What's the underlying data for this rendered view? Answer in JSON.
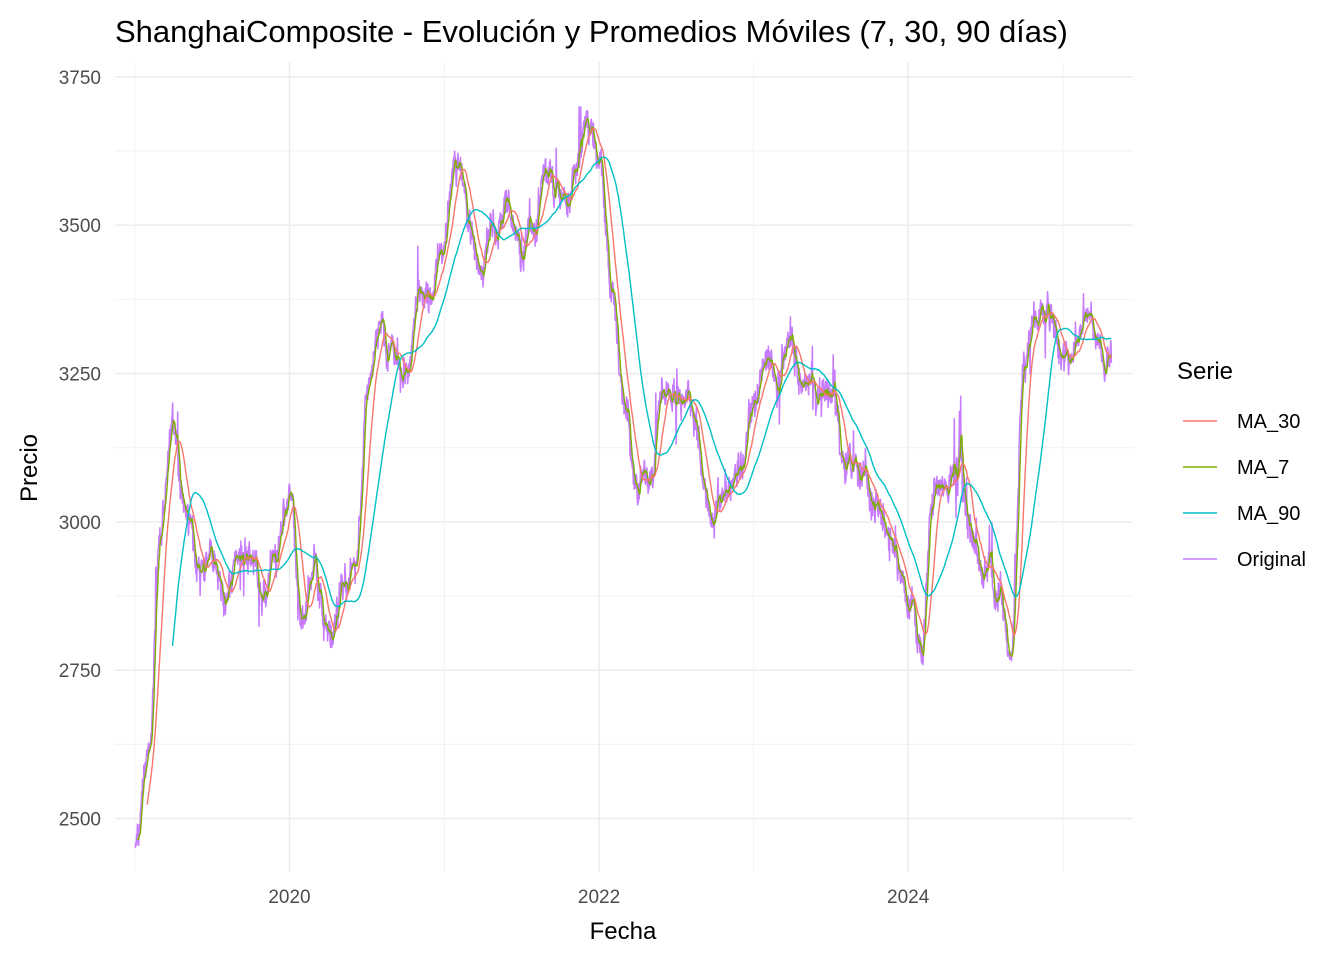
{
  "chart_data": {
    "type": "line",
    "title": "ShanghaiComposite - Evolución y Promedios Móviles (7, 30, 90 días)",
    "xlabel": "Fecha",
    "ylabel": "Precio",
    "x_ticks": [
      "2020",
      "2022",
      "2024"
    ],
    "y_ticks": [
      "2500",
      "2750",
      "3000",
      "3250",
      "3500",
      "3750"
    ],
    "ylim": [
      2410,
      3775
    ],
    "xlim": [
      "2018-11-15",
      "2025-06-15"
    ],
    "grid": true,
    "legend": {
      "title": "Serie",
      "position": "right"
    },
    "anchor_dates": [
      "2019-01-01",
      "2019-02-01",
      "2019-03-01",
      "2019-04-01",
      "2019-05-01",
      "2019-06-01",
      "2019-07-01",
      "2019-08-01",
      "2019-09-01",
      "2019-10-01",
      "2019-11-01",
      "2019-12-01",
      "2020-01-01",
      "2020-02-01",
      "2020-03-01",
      "2020-04-01",
      "2020-05-01",
      "2020-06-01",
      "2020-07-01",
      "2020-08-01",
      "2020-09-01",
      "2020-10-01",
      "2020-11-01",
      "2020-12-01",
      "2021-01-01",
      "2021-02-01",
      "2021-03-01",
      "2021-04-01",
      "2021-05-01",
      "2021-06-01",
      "2021-07-01",
      "2021-08-01",
      "2021-09-01",
      "2021-10-01",
      "2021-11-01",
      "2021-12-01",
      "2022-01-01",
      "2022-02-01",
      "2022-03-01",
      "2022-04-01",
      "2022-05-01",
      "2022-06-01",
      "2022-07-01",
      "2022-08-01",
      "2022-09-01",
      "2022-10-01",
      "2022-11-01",
      "2022-12-01",
      "2023-01-01",
      "2023-02-01",
      "2023-03-01",
      "2023-04-01",
      "2023-05-01",
      "2023-06-01",
      "2023-07-01",
      "2023-08-01",
      "2023-09-01",
      "2023-10-01",
      "2023-11-01",
      "2023-12-01",
      "2024-01-01",
      "2024-02-01",
      "2024-03-01",
      "2024-04-01",
      "2024-05-01",
      "2024-06-01",
      "2024-07-01",
      "2024-08-01",
      "2024-09-01",
      "2024-10-01",
      "2024-11-01",
      "2024-12-01",
      "2025-01-01",
      "2025-02-01",
      "2025-03-01",
      "2025-04-01",
      "2025-05-01"
    ],
    "anchor_values": [
      2480,
      2600,
      2980,
      3150,
      3000,
      2890,
      2960,
      2880,
      2950,
      2960,
      2900,
      2950,
      3050,
      2850,
      2900,
      2800,
      2880,
      2920,
      3200,
      3350,
      3300,
      3250,
      3350,
      3400,
      3500,
      3600,
      3450,
      3430,
      3500,
      3550,
      3450,
      3500,
      3620,
      3550,
      3580,
      3650,
      3600,
      3400,
      3200,
      3050,
      3080,
      3250,
      3220,
      3200,
      3100,
      3000,
      3050,
      3100,
      3200,
      3280,
      3250,
      3300,
      3250,
      3200,
      3230,
      3100,
      3100,
      3050,
      3000,
      2950,
      2880,
      2800,
      3050,
      3050,
      3120,
      3000,
      2950,
      2870,
      2780,
      3250,
      3350,
      3380,
      3280,
      3330,
      3380,
      3280,
      3300
    ],
    "series": [
      {
        "name": "MA_30",
        "color": "#f8766d",
        "window": 30
      },
      {
        "name": "MA_7",
        "color": "#7cae00",
        "window": 7
      },
      {
        "name": "MA_90",
        "color": "#00bfc4",
        "window": 90
      },
      {
        "name": "Original",
        "color": "#c77cff",
        "window": 1
      }
    ]
  }
}
